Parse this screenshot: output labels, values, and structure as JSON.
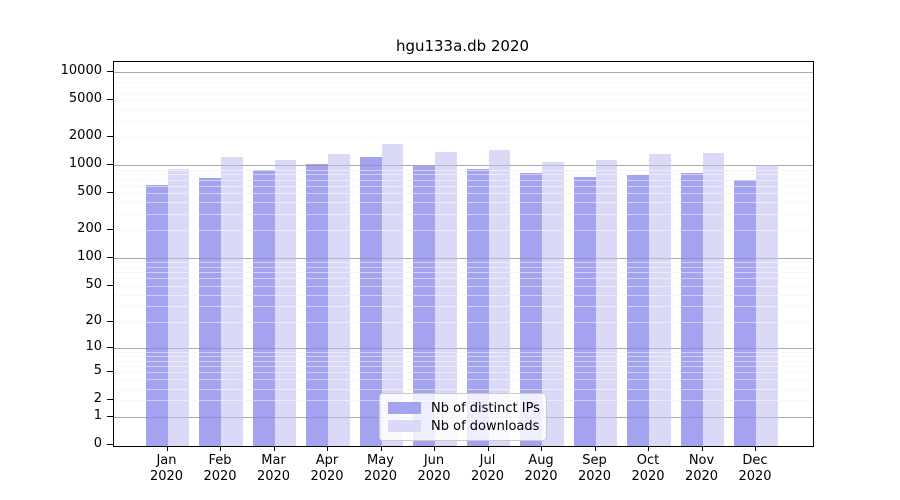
{
  "chart_data": {
    "type": "bar",
    "title": "hgu133a.db 2020",
    "y_scale": "log(value+1)",
    "ylim": [
      0,
      13000
    ],
    "grid": true,
    "legend_position": "lower center",
    "y_tick_labels": [
      "0",
      "1",
      "2",
      "5",
      "10",
      "20",
      "50",
      "100",
      "200",
      "500",
      "1000",
      "2000",
      "5000",
      "10000"
    ],
    "x_categories": [
      {
        "month": "Jan",
        "year": "2020"
      },
      {
        "month": "Feb",
        "year": "2020"
      },
      {
        "month": "Mar",
        "year": "2020"
      },
      {
        "month": "Apr",
        "year": "2020"
      },
      {
        "month": "May",
        "year": "2020"
      },
      {
        "month": "Jun",
        "year": "2020"
      },
      {
        "month": "Jul",
        "year": "2020"
      },
      {
        "month": "Aug",
        "year": "2020"
      },
      {
        "month": "Sep",
        "year": "2020"
      },
      {
        "month": "Oct",
        "year": "2020"
      },
      {
        "month": "Nov",
        "year": "2020"
      },
      {
        "month": "Dec",
        "year": "2020"
      }
    ],
    "series": [
      {
        "name": "Nb of distinct IPs",
        "color": "#a3a3f0",
        "values": [
          620,
          740,
          890,
          1040,
          1240,
          980,
          920,
          820,
          760,
          780,
          830,
          700
        ]
      },
      {
        "name": "Nb of downloads",
        "color": "#dadaf8",
        "values": [
          920,
          1230,
          1150,
          1340,
          1700,
          1400,
          1450,
          1100,
          1150,
          1320,
          1360,
          1010
        ]
      }
    ]
  }
}
